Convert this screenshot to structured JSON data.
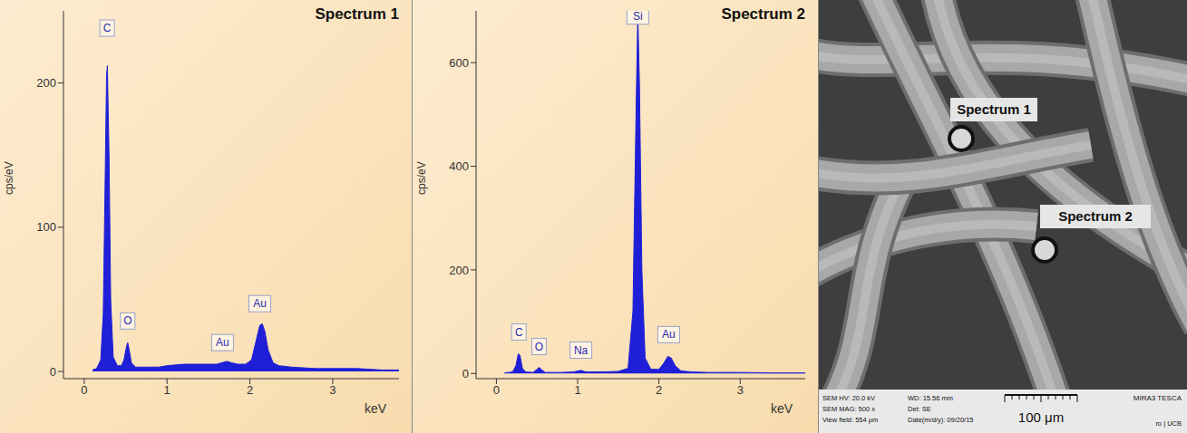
{
  "chart_data": [
    {
      "type": "area",
      "title": "Spectrum 1",
      "x_label": "keV",
      "y_label": "cps/eV",
      "color": "#1f1fd8",
      "x": [
        0.1,
        0.15,
        0.2,
        0.23,
        0.25,
        0.27,
        0.28,
        0.3,
        0.32,
        0.35,
        0.4,
        0.45,
        0.48,
        0.51,
        0.525,
        0.54,
        0.57,
        0.62,
        0.7,
        0.8,
        0.9,
        1.0,
        1.2,
        1.4,
        1.6,
        1.66,
        1.72,
        1.78,
        1.85,
        1.95,
        2.02,
        2.07,
        2.12,
        2.15,
        2.18,
        2.22,
        2.28,
        2.35,
        2.5,
        2.8,
        3.0,
        3.3,
        3.6,
        3.8
      ],
      "values": [
        1,
        2,
        8,
        40,
        120,
        205,
        212,
        150,
        50,
        10,
        4,
        4,
        8,
        17,
        20,
        16,
        6,
        3,
        3,
        3,
        3,
        4,
        5,
        5,
        5,
        6,
        7,
        6,
        5,
        5,
        8,
        20,
        32,
        33,
        28,
        15,
        6,
        4,
        3,
        2,
        2,
        2,
        1,
        1
      ],
      "xlim": [
        -0.25,
        3.8
      ],
      "xticks": [
        0,
        1,
        2,
        3
      ],
      "ylim": [
        -5,
        250
      ],
      "yticks": [
        0,
        100,
        200
      ],
      "annotations": [
        {
          "text": "C",
          "x": 0.277,
          "y": 238
        },
        {
          "text": "O",
          "x": 0.525,
          "y": 35
        },
        {
          "text": "Au",
          "x": 1.67,
          "y": 20
        },
        {
          "text": "Au",
          "x": 2.12,
          "y": 47
        }
      ]
    },
    {
      "type": "area",
      "title": "Spectrum 2",
      "x_label": "keV",
      "y_label": "cps/eV",
      "color": "#1f1fd8",
      "x": [
        0.1,
        0.2,
        0.24,
        0.27,
        0.29,
        0.32,
        0.36,
        0.45,
        0.5,
        0.525,
        0.55,
        0.6,
        0.8,
        0.95,
        1.04,
        1.1,
        1.3,
        1.5,
        1.62,
        1.68,
        1.72,
        1.74,
        1.76,
        1.79,
        1.83,
        1.9,
        2.0,
        2.06,
        2.11,
        2.15,
        2.2,
        2.27,
        2.4,
        2.6,
        3.0,
        3.4,
        3.8
      ],
      "values": [
        1,
        3,
        15,
        38,
        35,
        10,
        3,
        2,
        8,
        12,
        8,
        2,
        2,
        3,
        6,
        3,
        3,
        4,
        10,
        120,
        520,
        695,
        560,
        200,
        30,
        8,
        8,
        20,
        33,
        30,
        15,
        5,
        3,
        2,
        2,
        1,
        1
      ],
      "xlim": [
        -0.25,
        3.8
      ],
      "xticks": [
        0,
        1,
        2,
        3
      ],
      "ylim": [
        -10,
        700
      ],
      "yticks": [
        0,
        200,
        400,
        600
      ],
      "annotations": [
        {
          "text": "C",
          "x": 0.277,
          "y": 80
        },
        {
          "text": "O",
          "x": 0.525,
          "y": 52
        },
        {
          "text": "Na",
          "x": 1.04,
          "y": 45
        },
        {
          "text": "Si",
          "x": 1.74,
          "y": 690
        },
        {
          "text": "Au",
          "x": 2.12,
          "y": 75
        }
      ]
    }
  ],
  "image": {
    "markers": [
      "Spectrum 1",
      "Spectrum 2"
    ],
    "info_bar": {
      "rows": [
        [
          "SEM HV: 20.0 kV",
          "WD: 15.56 mm"
        ],
        [
          "SEM MAG: 500 x",
          "Det: SE"
        ],
        [
          "View field: 554 μm",
          "Date(m/d/y): 09/20/15"
        ]
      ],
      "scale_bar": "100 μm",
      "instrument": "MIRA3 TESCA",
      "lab": "ro | UCB"
    }
  }
}
